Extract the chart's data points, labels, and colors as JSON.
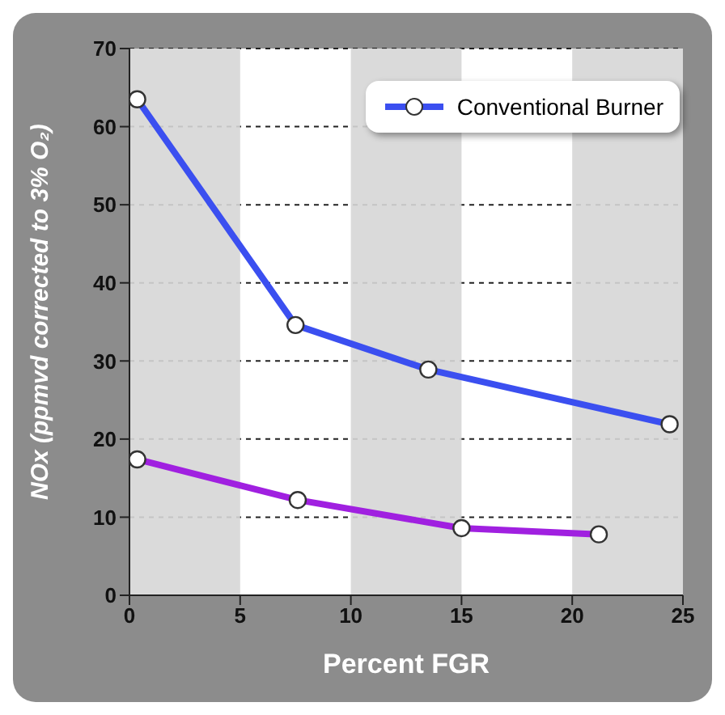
{
  "chart_data": {
    "type": "line",
    "xlabel": "Percent FGR",
    "ylabel": "NOx (ppmvd corrected to 3% O₂)",
    "xlim": [
      0,
      25
    ],
    "xticks": [
      0,
      5,
      10,
      15,
      20,
      25
    ],
    "ylim": [
      0,
      70
    ],
    "yticks": [
      0,
      10,
      20,
      30,
      40,
      50,
      60,
      70
    ],
    "grid": "y",
    "legend": "top right",
    "marker": "circle",
    "line_style": "solid",
    "bands": [
      {
        "axis": "x",
        "from": 0,
        "to": 5,
        "color": "#d6d6d6"
      },
      {
        "axis": "x",
        "from": 10,
        "to": 15,
        "color": "#d6d6d6"
      },
      {
        "axis": "x",
        "from": 20,
        "to": 25,
        "color": "#d6d6d6"
      }
    ],
    "series": [
      {
        "name": "Conventional Burner",
        "color": "#3b4ff0",
        "x": [
          0.35,
          7.5,
          13.5,
          24.4
        ],
        "values": [
          63.5,
          34.6,
          28.9,
          21.9
        ]
      },
      {
        "color": "#a020e0",
        "x": [
          0.35,
          7.6,
          15.0,
          21.2
        ],
        "values": [
          17.4,
          12.2,
          8.6,
          7.8
        ]
      }
    ]
  }
}
